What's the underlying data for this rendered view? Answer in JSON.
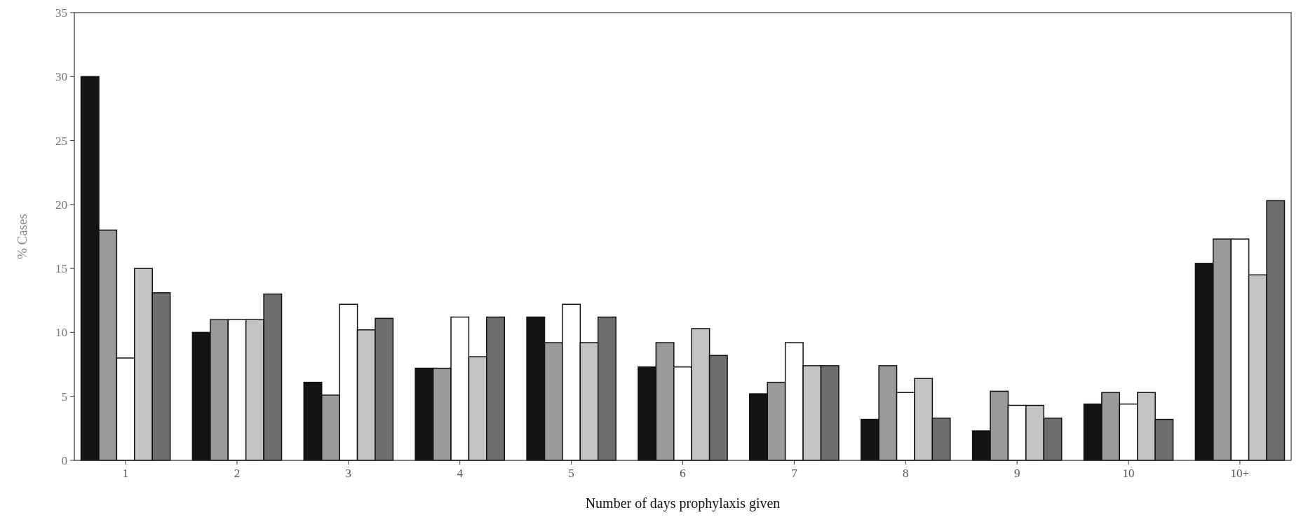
{
  "chart_data": {
    "type": "bar",
    "xlabel": "Number of days prophylaxis given",
    "ylabel": "% Cases",
    "categories": [
      "1",
      "2",
      "3",
      "4",
      "5",
      "6",
      "7",
      "8",
      "9",
      "10",
      "10+"
    ],
    "series": [
      {
        "color": "#141414",
        "values": [
          30,
          10,
          6.1,
          7.2,
          11.2,
          7.3,
          5.2,
          3.2,
          2.3,
          4.4,
          15.4
        ]
      },
      {
        "color": "#9a9a9a",
        "values": [
          18,
          11,
          5.1,
          7.2,
          9.2,
          9.2,
          6.1,
          7.4,
          5.4,
          5.3,
          17.3
        ]
      },
      {
        "color": "#ffffff",
        "values": [
          8,
          11,
          12.2,
          11.2,
          12.2,
          7.3,
          9.2,
          5.3,
          4.3,
          4.4,
          17.3
        ]
      },
      {
        "color": "#c4c4c4",
        "values": [
          15,
          11,
          10.2,
          8.1,
          9.2,
          10.3,
          7.4,
          6.4,
          4.3,
          5.3,
          14.5
        ]
      },
      {
        "color": "#6e6e6e",
        "values": [
          13.1,
          13,
          11.1,
          11.2,
          11.2,
          8.2,
          7.4,
          3.3,
          3.3,
          3.2,
          20.3
        ]
      }
    ],
    "ylim": [
      0,
      35
    ],
    "yticks": [
      0,
      5,
      10,
      15,
      20,
      25,
      30,
      35
    ],
    "grid": false
  }
}
